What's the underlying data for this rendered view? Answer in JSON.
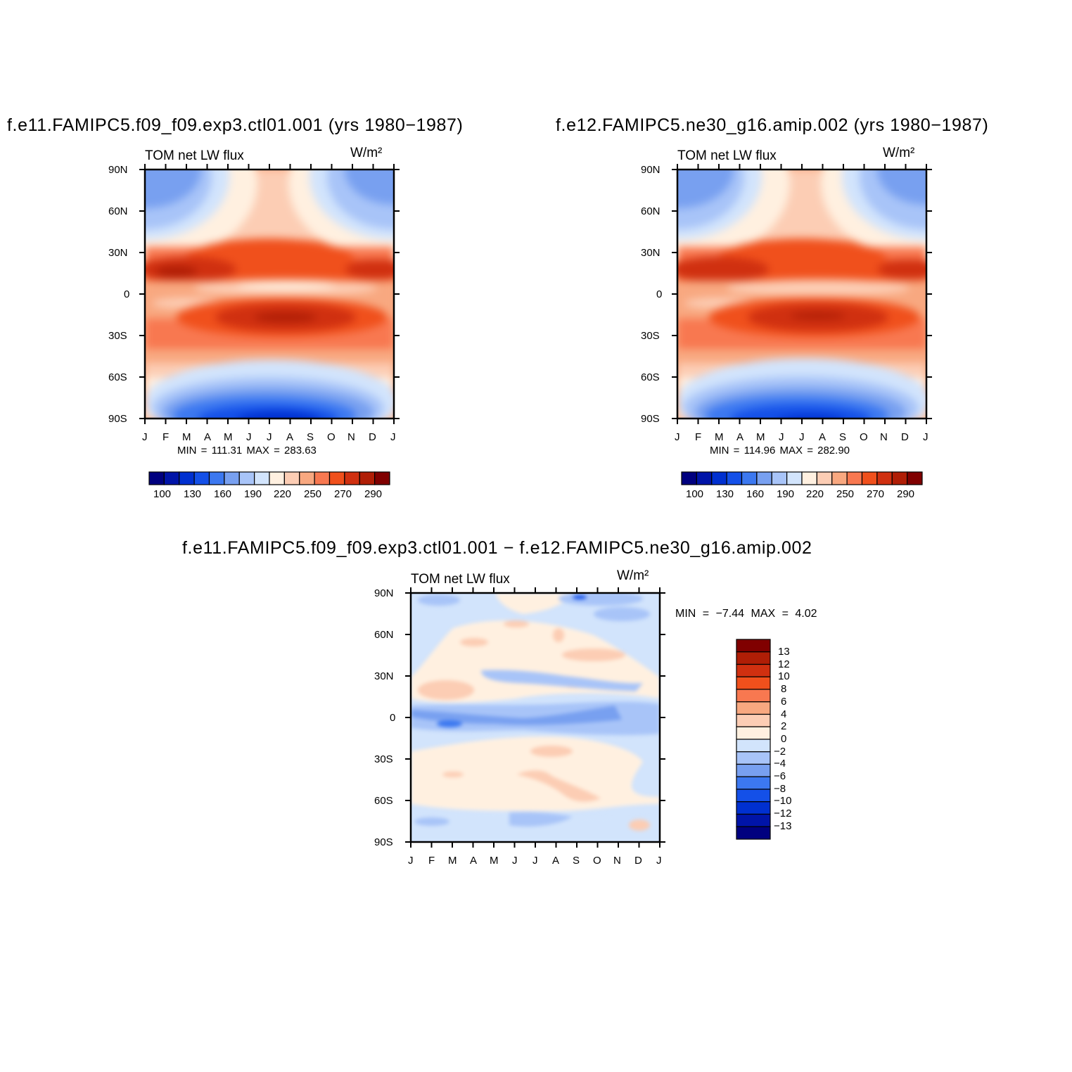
{
  "panels": [
    {
      "title": "f.e11.FAMIPC5.f09_f09.exp3.ctl01.001 (yrs 1980-1987)",
      "subtitle_left": "TOM net LW flux",
      "units": "W/m²",
      "stats": "MIN = 111.31 MAX = 283.63"
    },
    {
      "title": "f.e12.FAMIPC5.ne30_g16.amip.002 (yrs 1980-1987)",
      "subtitle_left": "TOM net LW flux",
      "units": "W/m²",
      "stats": "MIN = 114.96 MAX = 282.90"
    },
    {
      "title": "f.e11.FAMIPC5.f09_f09.exp3.ctl01.001 - f.e12.FAMIPC5.ne30_g16.amip.002",
      "subtitle_left": "TOM net LW flux",
      "units": "W/m²",
      "stats": "MIN = -7.44 MAX = 4.02"
    }
  ],
  "colors": {
    "flux_scale": [
      "#00007f",
      "#0014a8",
      "#0030d0",
      "#1450e8",
      "#3c78f0",
      "#78a0f0",
      "#a8c4f8",
      "#d2e4fc",
      "#fff0e0",
      "#fccdb4",
      "#f8a880",
      "#f87850",
      "#f0501c",
      "#d03010",
      "#b01e06",
      "#800000"
    ],
    "diff_scale": [
      "#00007f",
      "#0014a8",
      "#0030d0",
      "#1450e8",
      "#3c78f0",
      "#78a0f0",
      "#a8c4f8",
      "#d2e4fc",
      "#fff0e0",
      "#fccdb4",
      "#f8a880",
      "#f87850",
      "#f0501c",
      "#d03010",
      "#b01e06",
      "#800000"
    ]
  },
  "chart_data": [
    {
      "type": "heatmap",
      "title": "f.e11.FAMIPC5.f09_f09.exp3.ctl01.001 (yrs 1980-1987)",
      "subtitle": "TOM net LW flux",
      "units": "W/m²",
      "x_ticks": [
        "J",
        "F",
        "M",
        "A",
        "M",
        "J",
        "J",
        "A",
        "S",
        "O",
        "N",
        "D",
        "J"
      ],
      "y_ticks": [
        "90N",
        "60N",
        "30N",
        "0",
        "30S",
        "60S",
        "90S"
      ],
      "ylim": [
        -90,
        90
      ],
      "min": 111.31,
      "max": 283.63,
      "colorbar_labels": [
        "100",
        "130",
        "160",
        "190",
        "220",
        "250",
        "270",
        "290"
      ]
    },
    {
      "type": "heatmap",
      "title": "f.e12.FAMIPC5.ne30_g16.amip.002 (yrs 1980-1987)",
      "subtitle": "TOM net LW flux",
      "units": "W/m²",
      "x_ticks": [
        "J",
        "F",
        "M",
        "A",
        "M",
        "J",
        "J",
        "A",
        "S",
        "O",
        "N",
        "D",
        "J"
      ],
      "y_ticks": [
        "90N",
        "60N",
        "30N",
        "0",
        "30S",
        "60S",
        "90S"
      ],
      "ylim": [
        -90,
        90
      ],
      "min": 114.96,
      "max": 282.9,
      "colorbar_labels": [
        "100",
        "130",
        "160",
        "190",
        "220",
        "250",
        "270",
        "290"
      ]
    },
    {
      "type": "heatmap",
      "title": "f.e11.FAMIPC5.f09_f09.exp3.ctl01.001 - f.e12.FAMIPC5.ne30_g16.amip.002",
      "subtitle": "TOM net LW flux",
      "units": "W/m²",
      "x_ticks": [
        "J",
        "F",
        "M",
        "A",
        "M",
        "J",
        "J",
        "A",
        "S",
        "O",
        "N",
        "D",
        "J"
      ],
      "y_ticks": [
        "90N",
        "60N",
        "30N",
        "0",
        "30S",
        "60S",
        "90S"
      ],
      "ylim": [
        -90,
        90
      ],
      "min": -7.44,
      "max": 4.02,
      "colorbar_labels": [
        "13",
        "12",
        "10",
        "8",
        "6",
        "4",
        "2",
        "0",
        "-2",
        "-4",
        "-6",
        "-8",
        "-10",
        "-12",
        "-13"
      ]
    }
  ]
}
